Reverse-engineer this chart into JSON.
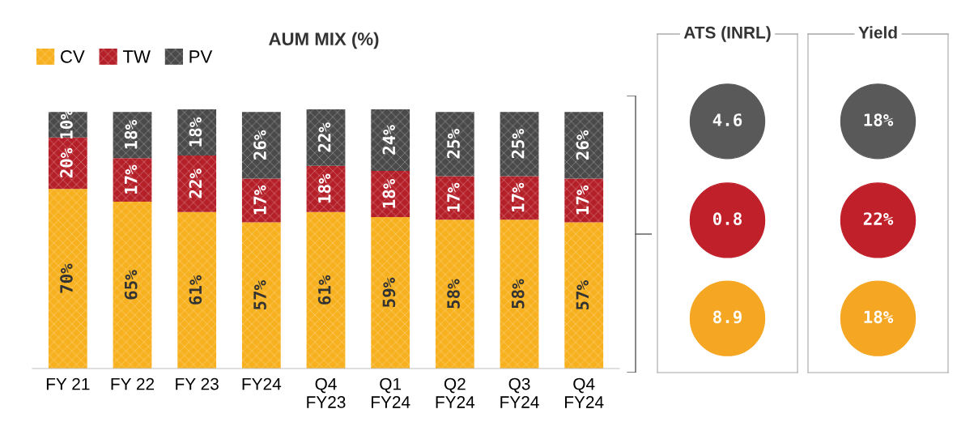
{
  "chart_data": [
    {
      "type": "bar",
      "title": "AUM MIX (%)",
      "stacked": true,
      "legend": "top left",
      "grid": false,
      "categories": [
        "FY 21",
        "FY 22",
        "FY 23",
        "FY24",
        "Q4\nFY23",
        "Q1\nFY24",
        "Q2\nFY24",
        "Q3\nFY24",
        "Q4\nFY24"
      ],
      "series": [
        {
          "name": "CV",
          "color": "#f7b01e",
          "values": [
            70,
            65,
            61,
            57,
            61,
            59,
            58,
            58,
            57
          ],
          "value_labels": [
            "70%",
            "65%",
            "61%",
            "57%",
            "61%",
            "59%",
            "58%",
            "58%",
            "57%"
          ]
        },
        {
          "name": "TW",
          "color": "#b51f28",
          "values": [
            20,
            17,
            22,
            17,
            18,
            18,
            17,
            17,
            17
          ],
          "value_labels": [
            "20%",
            "17%",
            "22%",
            "17%",
            "18%",
            "18%",
            "17%",
            "17%",
            "17%"
          ]
        },
        {
          "name": "PV",
          "color": "#4a4a4a",
          "values": [
            10,
            18,
            18,
            26,
            22,
            24,
            25,
            25,
            26
          ],
          "value_labels": [
            "10%",
            "18%",
            "18%",
            "26%",
            "22%",
            "24%",
            "25%",
            "25%",
            "26%"
          ]
        }
      ]
    },
    {
      "type": "other",
      "title": "ATS (INRL)",
      "categories": [
        "4.6",
        "0.8",
        "8.9"
      ],
      "colors": [
        "#595959",
        "#c0202a",
        "#f5a623"
      ]
    },
    {
      "type": "other",
      "title": "Yield",
      "categories": [
        "18%",
        "22%",
        "18%"
      ],
      "colors": [
        "#595959",
        "#c0202a",
        "#f5a623"
      ]
    }
  ]
}
